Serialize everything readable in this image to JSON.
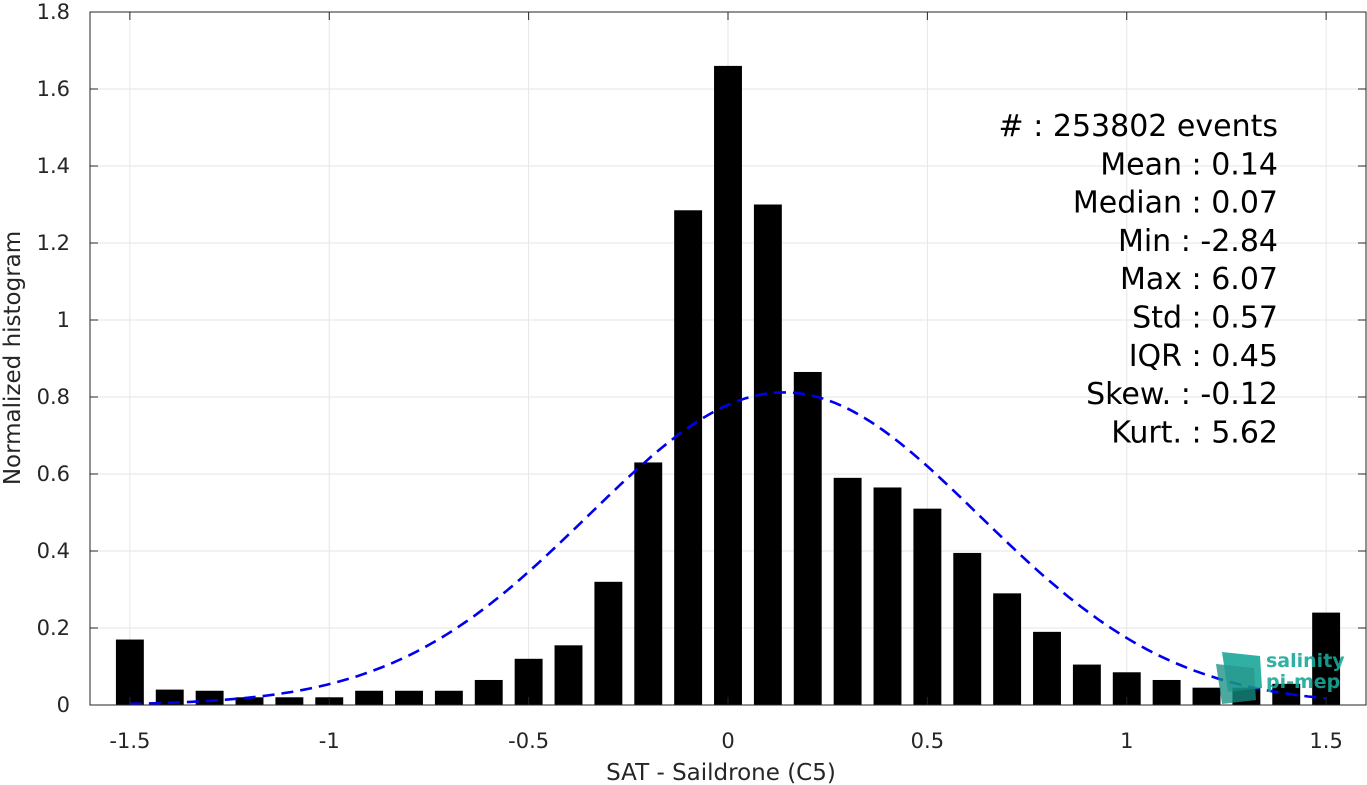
{
  "chart_data": {
    "type": "bar",
    "xlabel": "SAT - Saildrone (C5)",
    "ylabel": "Normalized histogram",
    "xlim": [
      -1.6,
      1.6
    ],
    "ylim": [
      0,
      1.8
    ],
    "grid": true,
    "xticks": [
      -1.5,
      -1,
      -0.5,
      0,
      0.5,
      1,
      1.5
    ],
    "yticks": [
      0,
      0.2,
      0.4,
      0.6,
      0.8,
      1,
      1.2,
      1.4,
      1.6,
      1.8
    ],
    "bar_width": 0.07,
    "series": [
      {
        "type": "bar",
        "color": "#000000",
        "x": [
          -1.5,
          -1.4,
          -1.3,
          -1.2,
          -1.1,
          -1.0,
          -0.9,
          -0.8,
          -0.7,
          -0.6,
          -0.5,
          -0.4,
          -0.3,
          -0.2,
          -0.1,
          0.0,
          0.1,
          0.2,
          0.3,
          0.4,
          0.5,
          0.6,
          0.7,
          0.8,
          0.9,
          1.0,
          1.1,
          1.2,
          1.3,
          1.4,
          1.5
        ],
        "values": [
          0.17,
          0.04,
          0.037,
          0.02,
          0.02,
          0.02,
          0.037,
          0.037,
          0.037,
          0.065,
          0.12,
          0.155,
          0.32,
          0.63,
          1.285,
          1.66,
          1.3,
          0.865,
          0.59,
          0.565,
          0.51,
          0.395,
          0.29,
          0.19,
          0.105,
          0.085,
          0.065,
          0.045,
          0.045,
          0.055,
          0.24
        ]
      },
      {
        "type": "line",
        "style": "dashed",
        "color": "#0000ee",
        "mean": 0.14,
        "std": 0.49,
        "peak": 0.812,
        "x_range": [
          -1.5,
          1.5
        ]
      }
    ],
    "stats": [
      {
        "label": "#  : 253802 events"
      },
      {
        "label": "Mean : 0.14"
      },
      {
        "label": "Median : 0.07"
      },
      {
        "label": "Min : -2.84"
      },
      {
        "label": "Max : 6.07"
      },
      {
        "label": "Std : 0.57"
      },
      {
        "label": "IQR : 0.45"
      },
      {
        "label": "Skew. : -0.12"
      },
      {
        "label": "Kurt. : 5.62"
      }
    ]
  },
  "logo": {
    "line1": "salinity",
    "line2": "pi-mep",
    "color": "#1aa89a"
  }
}
